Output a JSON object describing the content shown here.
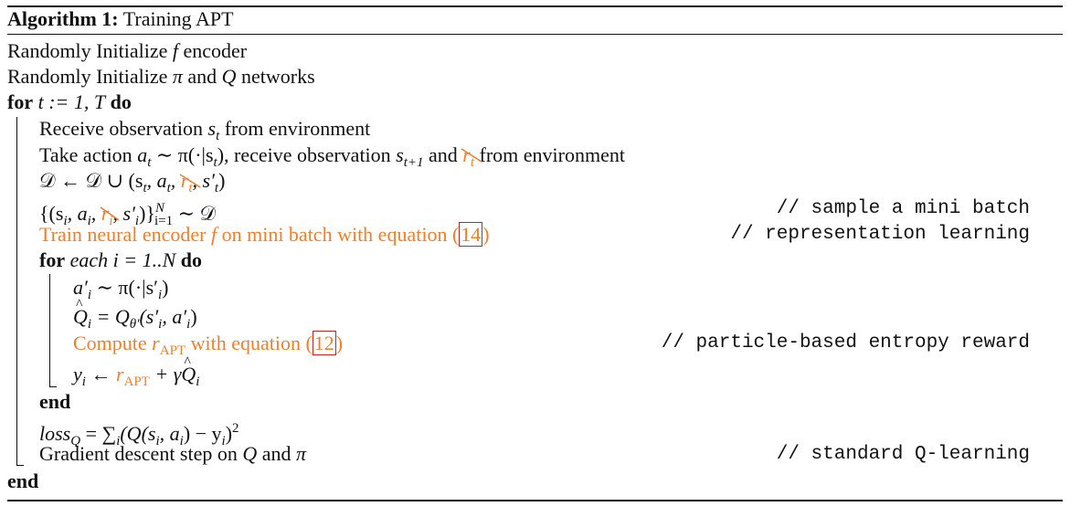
{
  "algorithm": {
    "label": "Algorithm 1:",
    "title": "Training APT",
    "lines": {
      "init_f": {
        "text": "Randomly Initialize",
        "var": "f",
        "suffix": "encoder"
      },
      "init_pi": {
        "text": "Randomly Initialize",
        "pi": "π",
        "and": "and",
        "q": "Q",
        "suffix": "networks"
      },
      "for_t": {
        "kw_for": "for",
        "expr": "t := 1, T",
        "kw_do": "do"
      },
      "receive": {
        "text": "Receive observation",
        "var": "s",
        "sub": "t",
        "suffix": "from environment"
      },
      "take_action": {
        "text": "Take action",
        "expr": "a",
        "expr_sub": "t",
        "expr2": " ∼ π(·|s",
        "expr2_sub": "t",
        "expr2_end": "), receive observation ",
        "s": "s",
        "s_sub": "t+1",
        "and": "and",
        "r": "r",
        "r_sub": "t",
        "suffix": "from environment"
      },
      "dataset": {
        "lhs": "𝒟 ← 𝒟 ∪ (s",
        "sub1": "t",
        "mid": ", a",
        "sub2": "t",
        "r": "r",
        "r_sub": "t",
        "end": ", s′",
        "sub3": "t",
        "close": ")"
      },
      "sample": {
        "open": "{(s",
        "i1": "i",
        "a": ", a",
        "i2": "i",
        "r": "r",
        "r_sub": "i",
        "s": ", s′",
        "i3": "i",
        "close": ")}",
        "sup": "N",
        "sub": "i=1",
        "tail": " ∼ 𝒟",
        "comment": "// sample a mini batch"
      },
      "train": {
        "text": "Train neural encoder",
        "var": "f",
        "mid": "on mini batch with equation (",
        "ref": "14",
        "close": ")",
        "comment": "// representation learning"
      },
      "for_each": {
        "kw_for": "for",
        "each": "each",
        "expr": "i = 1..N",
        "kw_do": "do"
      },
      "a_prime": {
        "lhs": "a′",
        "sub": "i",
        "rhs": " ∼ π(·|s′",
        "sub2": "i",
        "close": ")"
      },
      "q_hat": {
        "lhs": "Q",
        "sub": "i",
        "eq": " = Q",
        "theta": "θ′",
        "args": "(s′",
        "sub2": "i",
        "args2": ", a′",
        "sub3": "i",
        "close": ")"
      },
      "compute": {
        "text": "Compute",
        "r": "r",
        "r_sub": "APT",
        "suffix": "with equation (",
        "ref": "12",
        "close": ")",
        "comment": "// particle-based entropy reward"
      },
      "y_update": {
        "lhs": "y",
        "sub": "i",
        "arrow": " ← ",
        "r": "r",
        "r_sub": "APT",
        "plus": " + γ",
        "q": "Q",
        "q_sub": "i"
      },
      "end_inner": {
        "kw": "end"
      },
      "loss": {
        "lhs": "loss",
        "sub": "Q",
        "eq": " = ∑",
        "sum_sub": "i",
        "body": "(Q(s",
        "s1": "i",
        "body2": ", a",
        "a1": "i",
        "body3": ") − y",
        "y1": "i",
        "body4": ")",
        "sup": "2"
      },
      "gradient": {
        "text": "Gradient descent step on",
        "q": "Q",
        "and": "and",
        "pi": "π",
        "comment": "// standard Q-learning"
      },
      "end_outer": {
        "kw": "end"
      }
    }
  },
  "colors": {
    "highlight": "#f07f2c",
    "ref_box": "#d21f1f",
    "text": "#111111"
  }
}
